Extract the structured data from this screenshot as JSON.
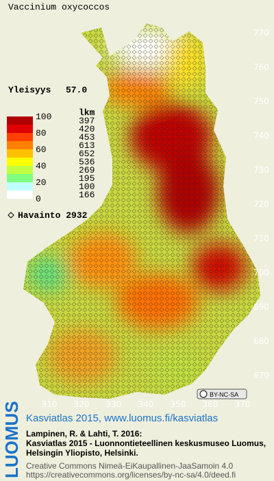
{
  "title": "Vaccinium oxycoccos",
  "frequency": {
    "label": "Yleisyys",
    "value": "57.0"
  },
  "legend": {
    "levels": [
      100,
      80,
      60,
      40,
      20,
      0
    ],
    "count_header": "lkm",
    "counts": [
      397,
      420,
      453,
      613,
      652,
      536,
      269,
      195,
      100,
      166
    ]
  },
  "observations": "Havainto 2932",
  "y_grid_labels": [
    770,
    760,
    750,
    740,
    730,
    720,
    710,
    700,
    690,
    680,
    670
  ],
  "x_grid_labels": [
    310,
    320,
    330,
    340,
    350,
    360,
    370
  ],
  "license_badge": "BY-NC-SA",
  "footer": {
    "logo": "LUOMUS",
    "heading": "Kasviatlas 2015, www.luomus.fi/kasviatlas",
    "citation": [
      "Lampinen, R. & Lahti, T. 2016:",
      "Kasviatlas 2015 - Luonnontieteellinen keskusmuseo Luomus,",
      "Helsingin Yliopisto, Helsinki."
    ],
    "license": [
      "Creative Commons Nimeä-EiKaupallinen-JaaSamoin 4.0",
      "https://creativecommons.org/licenses/by-nc-sa/4.0/deed.fi"
    ]
  }
}
